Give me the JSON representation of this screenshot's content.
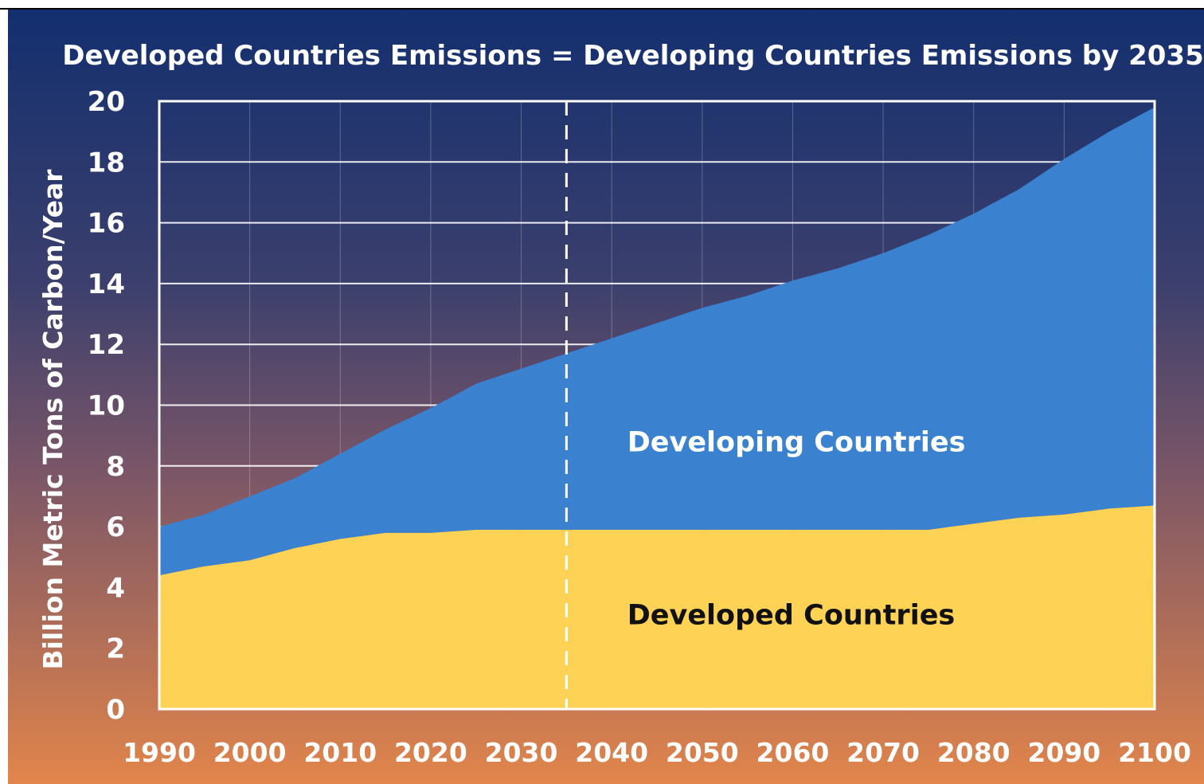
{
  "chart_data": {
    "type": "area",
    "stacked": true,
    "title": "Developed Countries Emissions = Developing Countries Emissions by 2035",
    "xlabel": "",
    "ylabel": "Billion Metric Tons of Carbon/Year",
    "xlim": [
      1990,
      2100
    ],
    "ylim": [
      0,
      20
    ],
    "x_ticks": [
      "1990",
      "2000",
      "2010",
      "2020",
      "2030",
      "2040",
      "2050",
      "2060",
      "2070",
      "2080",
      "2090",
      "2100"
    ],
    "y_ticks": [
      "0",
      "2",
      "4",
      "6",
      "8",
      "10",
      "12",
      "14",
      "16",
      "18",
      "20"
    ],
    "grid": true,
    "reference_line": {
      "x": 2035,
      "style": "dashed"
    },
    "x": [
      1990,
      1995,
      2000,
      2005,
      2010,
      2015,
      2020,
      2025,
      2030,
      2035,
      2040,
      2045,
      2050,
      2055,
      2060,
      2065,
      2070,
      2075,
      2080,
      2085,
      2090,
      2095,
      2100
    ],
    "series": [
      {
        "name": "Developed Countries",
        "color": "#fdd255",
        "values": [
          4.4,
          4.7,
          4.9,
          5.3,
          5.6,
          5.8,
          5.8,
          5.9,
          5.9,
          5.9,
          5.9,
          5.9,
          5.9,
          5.9,
          5.9,
          5.9,
          5.9,
          5.9,
          6.1,
          6.3,
          6.4,
          6.6,
          6.7
        ]
      },
      {
        "name": "Developing Countries",
        "color": "#3a82cf",
        "values": [
          1.6,
          1.7,
          2.1,
          2.3,
          2.8,
          3.4,
          4.1,
          4.8,
          5.3,
          5.8,
          6.3,
          6.8,
          7.3,
          7.7,
          8.2,
          8.6,
          9.1,
          9.7,
          10.2,
          10.8,
          11.7,
          12.4,
          13.1
        ]
      }
    ],
    "annotations": [
      {
        "text": "Developing Countries",
        "color": "#ffffff",
        "anchor": {
          "x": 2047,
          "y": 8.8
        }
      },
      {
        "text": "Developed Countries",
        "color": "#111111",
        "anchor": {
          "x": 2047,
          "y": 3.1
        }
      }
    ],
    "colors": {
      "background_top": "#132f6f",
      "background_bottom": "#e2854b",
      "text": "#ffffff",
      "grid": "#ffffff"
    }
  }
}
